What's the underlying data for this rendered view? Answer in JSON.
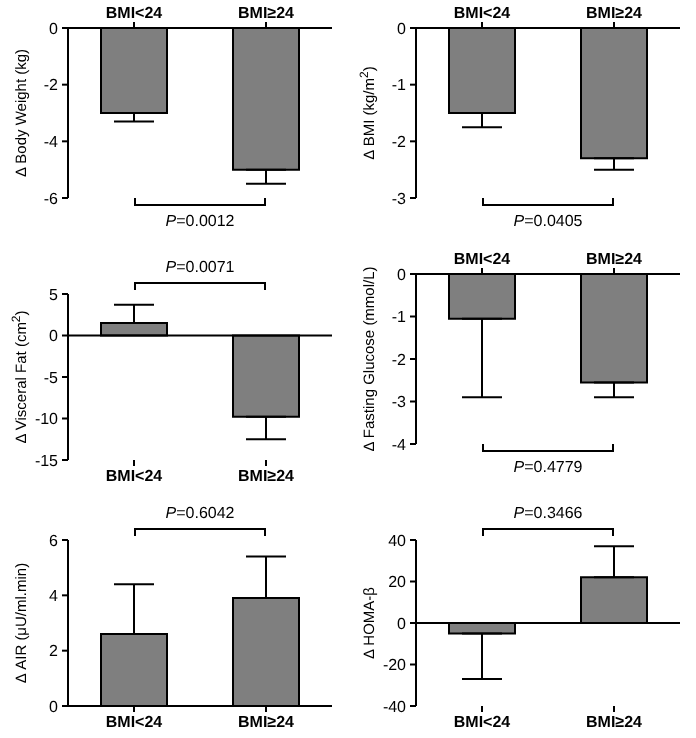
{
  "chart_data": [
    {
      "type": "bar",
      "categories": [
        "BMI<24",
        "BMI≥24"
      ],
      "ylabel": "Δ Body Weight (kg)",
      "values": [
        -3.0,
        -5.0
      ],
      "errors": [
        [
          -3.3,
          -3.0
        ],
        [
          -5.5,
          -5.0
        ]
      ],
      "color": "#7f7f7f",
      "ylim": [
        -6,
        0
      ],
      "yticks": [
        -6,
        -4,
        -2,
        0
      ],
      "annotations": [
        "P=0.0012"
      ],
      "grid": false
    },
    {
      "type": "bar",
      "categories": [
        "BMI<24",
        "BMI≥24"
      ],
      "ylabel": "Δ BMI (kg/m$^{2}$)",
      "values": [
        -1.5,
        -2.3
      ],
      "errors": [
        [
          -1.75,
          -1.5
        ],
        [
          -2.5,
          -2.3
        ]
      ],
      "color": "#7f7f7f",
      "ylim": [
        -3,
        0
      ],
      "yticks": [
        -3,
        -2,
        -1,
        0
      ],
      "annotations": [
        "P=0.0405"
      ],
      "grid": false
    },
    {
      "type": "bar",
      "categories": [
        "BMI<24",
        "BMI≥24"
      ],
      "ylabel": "Δ Visceral Fat (cm$^{2}$)",
      "values": [
        1.5,
        -9.8
      ],
      "errors": [
        [
          1.5,
          3.7
        ],
        [
          -12.5,
          -9.8
        ]
      ],
      "color": "#7f7f7f",
      "ylim": [
        -15,
        5
      ],
      "yticks": [
        -15,
        -10,
        -5,
        0,
        5
      ],
      "annotations": [
        "P=0.0071"
      ],
      "ref_lines": [
        {
          "axis": "y",
          "value": 0,
          "color": "#000000"
        }
      ]
    },
    {
      "type": "bar",
      "categories": [
        "BMI<24",
        "BMI≥24"
      ],
      "ylabel": "Δ Fasting Glucose (mmol/L)",
      "values": [
        -1.05,
        -2.55
      ],
      "errors": [
        [
          -2.9,
          -1.05
        ],
        [
          -2.9,
          -2.55
        ]
      ],
      "color": "#7f7f7f",
      "ylim": [
        -4,
        0
      ],
      "yticks": [
        -4,
        -3,
        -2,
        -1,
        0
      ],
      "annotations": [
        "P=0.4779"
      ],
      "grid": false
    },
    {
      "type": "bar",
      "categories": [
        "BMI<24",
        "BMI≥24"
      ],
      "ylabel": "Δ AIR (μU/ml.min)",
      "values": [
        2.6,
        3.9
      ],
      "errors": [
        [
          2.6,
          4.4
        ],
        [
          3.9,
          5.4
        ]
      ],
      "color": "#7f7f7f",
      "ylim": [
        0,
        6
      ],
      "yticks": [
        0,
        2,
        4,
        6
      ],
      "annotations": [
        "P=0.6042"
      ],
      "grid": false
    },
    {
      "type": "bar",
      "categories": [
        "BMI<24",
        "BMI≥24"
      ],
      "ylabel": "Δ HOMA-β",
      "values": [
        -5,
        22
      ],
      "errors": [
        [
          -27,
          -5
        ],
        [
          22,
          37
        ]
      ],
      "color": "#7f7f7f",
      "ylim": [
        -40,
        40
      ],
      "yticks": [
        -40,
        -20,
        0,
        20,
        40
      ],
      "annotations": [
        "P=0.3466"
      ],
      "ref_lines": [
        {
          "axis": "y",
          "value": 0,
          "color": "#000000"
        }
      ]
    }
  ]
}
